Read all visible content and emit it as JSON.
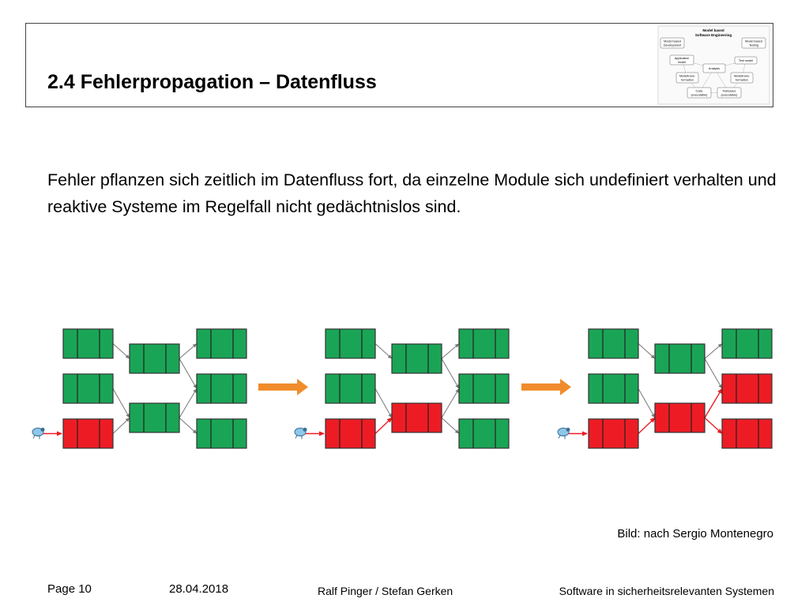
{
  "header": {
    "title": "2.4 Fehlerpropagation – Datenfluss",
    "diagram": {
      "title_line1": "Model based",
      "title_line2": "Software Engineering",
      "nodes": [
        {
          "id": "mbd",
          "lines": [
            "Model based",
            "Development"
          ]
        },
        {
          "id": "mbt",
          "lines": [
            "Model based",
            "Testing"
          ]
        },
        {
          "id": "app",
          "lines": [
            "Application",
            "model"
          ]
        },
        {
          "id": "test",
          "lines": [
            "Test model"
          ]
        },
        {
          "id": "analysis",
          "lines": [
            "Analysis"
          ]
        },
        {
          "id": "mt1",
          "lines": [
            "Modeltrans-",
            "formation"
          ]
        },
        {
          "id": "mt2",
          "lines": [
            "Modeltrans-",
            "formation"
          ]
        },
        {
          "id": "code",
          "lines": [
            "Code",
            "(executable)"
          ]
        },
        {
          "id": "tc",
          "lines": [
            "Testcases",
            "(executable)"
          ]
        }
      ]
    }
  },
  "body": {
    "paragraph": "Fehler pflanzen sich zeitlich im Datenfluss fort, da einzelne Module sich undefiniert verhalten und reaktive Systeme im Regelfall nicht gedächtnislos sind."
  },
  "figure": {
    "colors": {
      "ok": "#1aa556",
      "error": "#ed1c24",
      "arrow": "#f08c2c",
      "link": "#777777"
    },
    "icon": "bug-icon",
    "stages": [
      {
        "inputs": [
          "ok",
          "ok",
          "error"
        ],
        "middle": [
          "ok",
          "ok"
        ],
        "outputs": [
          "ok",
          "ok",
          "ok"
        ]
      },
      {
        "inputs": [
          "ok",
          "ok",
          "error"
        ],
        "middle": [
          "ok",
          "error"
        ],
        "outputs": [
          "ok",
          "ok",
          "ok"
        ]
      },
      {
        "inputs": [
          "ok",
          "ok",
          "error"
        ],
        "middle": [
          "ok",
          "error"
        ],
        "outputs": [
          "ok",
          "error",
          "error"
        ]
      }
    ]
  },
  "caption": "Bild: nach Sergio Montenegro",
  "footer": {
    "page": "Page 10",
    "date": "28.04.2018",
    "authors": "Ralf Pinger / Stefan Gerken",
    "course": "Software in sicherheitsrelevanten Systemen"
  }
}
